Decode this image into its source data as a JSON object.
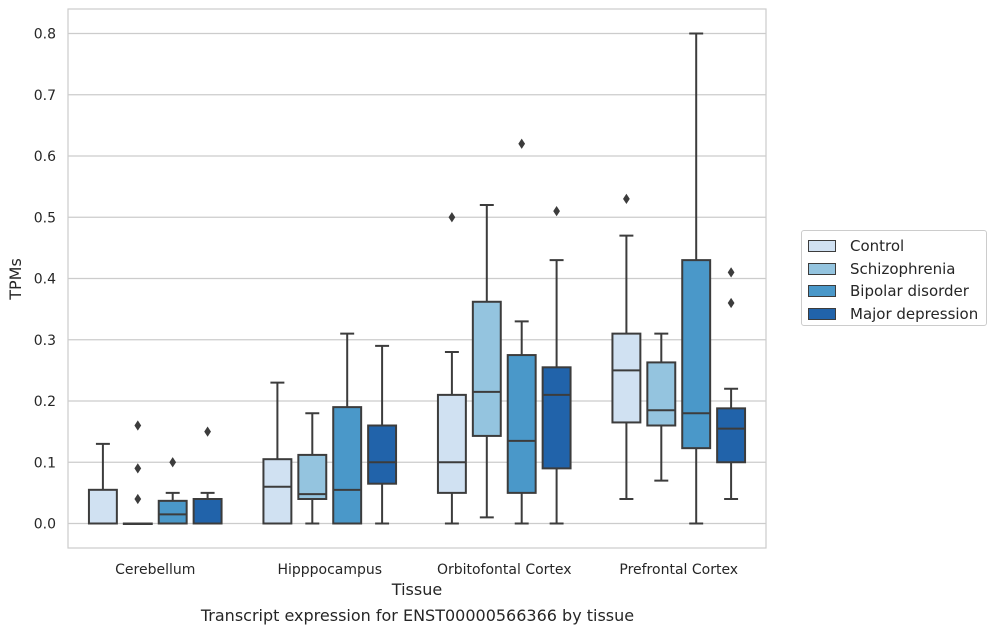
{
  "chart_data": {
    "type": "box",
    "xlabel": "Tissue",
    "ylabel": "TPMs",
    "ylim": [
      -0.04,
      0.84
    ],
    "yticks": [
      0.0,
      0.1,
      0.2,
      0.3,
      0.4,
      0.5,
      0.6,
      0.7,
      0.8
    ],
    "grid": true,
    "legend_position": "right",
    "categories": [
      "Cerebellum",
      "Hipppocampus",
      "Orbitofontal Cortex",
      "Prefrontal Cortex"
    ],
    "series": [
      {
        "name": "Control",
        "color": "#d0e1f2",
        "boxes": [
          {
            "whislo": 0.0,
            "q1": 0.0,
            "med": 0.0,
            "q3": 0.055,
            "whishi": 0.13,
            "fliers": []
          },
          {
            "whislo": 0.0,
            "q1": 0.0,
            "med": 0.06,
            "q3": 0.105,
            "whishi": 0.23,
            "fliers": []
          },
          {
            "whislo": 0.0,
            "q1": 0.05,
            "med": 0.1,
            "q3": 0.21,
            "whishi": 0.28,
            "fliers": [
              0.5
            ]
          },
          {
            "whislo": 0.04,
            "q1": 0.165,
            "med": 0.25,
            "q3": 0.31,
            "whishi": 0.47,
            "fliers": [
              0.53
            ]
          }
        ]
      },
      {
        "name": "Schizophrenia",
        "color": "#94c4df",
        "boxes": [
          {
            "whislo": 0.0,
            "q1": 0.0,
            "med": 0.0,
            "q3": 0.0,
            "whishi": 0.0,
            "fliers": [
              0.04,
              0.09,
              0.16
            ]
          },
          {
            "whislo": 0.0,
            "q1": 0.04,
            "med": 0.048,
            "q3": 0.112,
            "whishi": 0.18,
            "fliers": []
          },
          {
            "whislo": 0.01,
            "q1": 0.143,
            "med": 0.215,
            "q3": 0.362,
            "whishi": 0.52,
            "fliers": []
          },
          {
            "whislo": 0.07,
            "q1": 0.16,
            "med": 0.185,
            "q3": 0.263,
            "whishi": 0.31,
            "fliers": []
          }
        ]
      },
      {
        "name": "Bipolar disorder",
        "color": "#4a98c9",
        "boxes": [
          {
            "whislo": 0.0,
            "q1": 0.0,
            "med": 0.015,
            "q3": 0.037,
            "whishi": 0.05,
            "fliers": [
              0.1
            ]
          },
          {
            "whislo": 0.0,
            "q1": 0.0,
            "med": 0.055,
            "q3": 0.19,
            "whishi": 0.31,
            "fliers": []
          },
          {
            "whislo": 0.0,
            "q1": 0.05,
            "med": 0.135,
            "q3": 0.275,
            "whishi": 0.33,
            "fliers": [
              0.62
            ]
          },
          {
            "whislo": 0.0,
            "q1": 0.123,
            "med": 0.18,
            "q3": 0.43,
            "whishi": 0.8,
            "fliers": []
          }
        ]
      },
      {
        "name": "Major depression",
        "color": "#2163aa",
        "boxes": [
          {
            "whislo": 0.0,
            "q1": 0.0,
            "med": 0.0,
            "q3": 0.04,
            "whishi": 0.05,
            "fliers": [
              0.15
            ]
          },
          {
            "whislo": 0.0,
            "q1": 0.065,
            "med": 0.1,
            "q3": 0.16,
            "whishi": 0.29,
            "fliers": []
          },
          {
            "whislo": 0.0,
            "q1": 0.09,
            "med": 0.21,
            "q3": 0.255,
            "whishi": 0.43,
            "fliers": [
              0.51
            ]
          },
          {
            "whislo": 0.04,
            "q1": 0.1,
            "med": 0.155,
            "q3": 0.188,
            "whishi": 0.22,
            "fliers": [
              0.36,
              0.41
            ]
          }
        ]
      }
    ]
  },
  "caption": "Transcript expression for ENST00000566366 by tissue"
}
